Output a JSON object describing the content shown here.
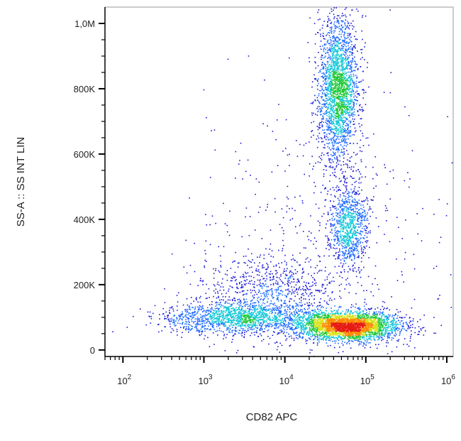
{
  "chart_data": {
    "type": "scatter",
    "title": "",
    "xlabel": "CD82 APC",
    "ylabel": "SS-A :: SS INT LIN",
    "x_scale": "log",
    "y_scale": "linear",
    "xlim": [
      60,
      1200000
    ],
    "ylim": [
      -20000,
      1050000
    ],
    "grid": false,
    "legend": "none",
    "colormap": "density (blue → cyan → green → yellow → red)",
    "x_ticks": [
      {
        "value": 100,
        "base": "10",
        "exp": "2"
      },
      {
        "value": 1000,
        "base": "10",
        "exp": "3"
      },
      {
        "value": 10000,
        "base": "10",
        "exp": "4"
      },
      {
        "value": 100000,
        "base": "10",
        "exp": "5"
      },
      {
        "value": 1000000,
        "base": "10",
        "exp": "6"
      }
    ],
    "y_ticks": [
      {
        "value": 0,
        "label": "0"
      },
      {
        "value": 200000,
        "label": "200K"
      },
      {
        "value": 400000,
        "label": "400K"
      },
      {
        "value": 600000,
        "label": "600K"
      },
      {
        "value": 800000,
        "label": "800K"
      },
      {
        "value": 1000000,
        "label": "1,0M"
      }
    ],
    "populations": [
      {
        "x_center": 60000,
        "y_center": 75000,
        "weight": 0.34,
        "log_x_spread": 0.32,
        "y_spread": 22000
      },
      {
        "x_center": 2500,
        "y_center": 100000,
        "weight": 0.16,
        "log_x_spread": 0.45,
        "y_spread": 25000
      },
      {
        "x_center": 45000,
        "y_center": 800000,
        "weight": 0.26,
        "log_x_spread": 0.12,
        "y_spread": 110000
      },
      {
        "x_center": 60000,
        "y_center": 380000,
        "weight": 0.1,
        "log_x_spread": 0.12,
        "y_spread": 60000
      },
      {
        "x_center": 7000,
        "y_center": 180000,
        "weight": 0.08,
        "log_x_spread": 0.4,
        "y_spread": 55000
      },
      {
        "x_center": 30000,
        "y_center": 300000,
        "weight": 0.06,
        "log_x_spread": 0.8,
        "y_spread": 250000
      }
    ],
    "peak_density_region": {
      "x": 50000,
      "y": 75000
    },
    "colors": [
      "#1a1ad6",
      "#1e6bff",
      "#17c8d8",
      "#22c93a",
      "#d9e21b",
      "#ff8a00",
      "#e51b13"
    ]
  }
}
